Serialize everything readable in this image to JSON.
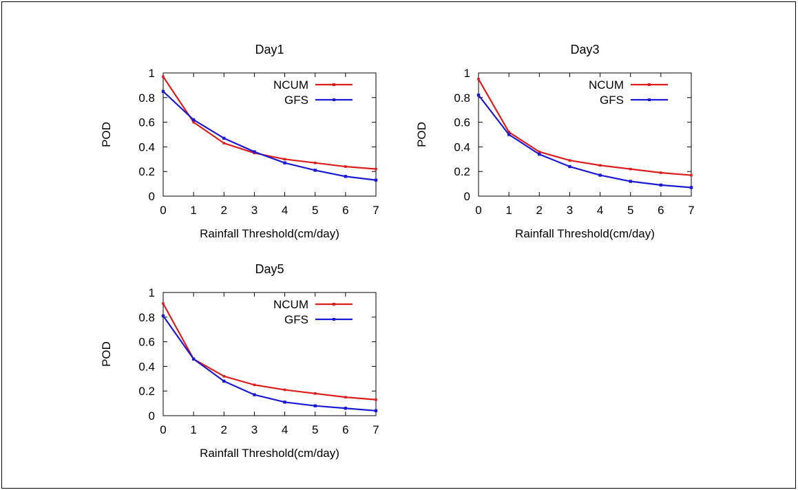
{
  "colors": {
    "NCUM": "#dd1c1c",
    "GFS": "#1a1ad4"
  },
  "chart_data": [
    {
      "type": "line",
      "title": "Day1",
      "xlabel": "Rainfall Threshold(cm/day)",
      "ylabel": "POD",
      "xlim": [
        0,
        7
      ],
      "ylim": [
        0,
        1
      ],
      "xticks": [
        "0",
        "1",
        "2",
        "3",
        "4",
        "5",
        "6",
        "7"
      ],
      "yticks": [
        "0",
        "0.2",
        "0.4",
        "0.6",
        "0.8",
        "1"
      ],
      "legend": "top-right",
      "x": [
        0,
        1,
        2,
        3,
        4,
        5,
        6,
        7
      ],
      "series": [
        {
          "name": "NCUM",
          "values": [
            0.97,
            0.6,
            0.43,
            0.35,
            0.3,
            0.27,
            0.24,
            0.22
          ]
        },
        {
          "name": "GFS",
          "values": [
            0.85,
            0.62,
            0.47,
            0.36,
            0.27,
            0.21,
            0.16,
            0.13
          ]
        }
      ]
    },
    {
      "type": "line",
      "title": "Day3",
      "xlabel": "Rainfall Threshold(cm/day)",
      "ylabel": "POD",
      "xlim": [
        0,
        7
      ],
      "ylim": [
        0,
        1
      ],
      "xticks": [
        "0",
        "1",
        "2",
        "3",
        "4",
        "5",
        "6",
        "7"
      ],
      "yticks": [
        "0",
        "0.2",
        "0.4",
        "0.6",
        "0.8",
        "1"
      ],
      "legend": "top-right",
      "x": [
        0,
        1,
        2,
        3,
        4,
        5,
        6,
        7
      ],
      "series": [
        {
          "name": "NCUM",
          "values": [
            0.95,
            0.52,
            0.36,
            0.29,
            0.25,
            0.22,
            0.19,
            0.17
          ]
        },
        {
          "name": "GFS",
          "values": [
            0.82,
            0.5,
            0.34,
            0.24,
            0.17,
            0.12,
            0.09,
            0.07
          ]
        }
      ]
    },
    {
      "type": "line",
      "title": "Day5",
      "xlabel": "Rainfall Threshold(cm/day)",
      "ylabel": "POD",
      "xlim": [
        0,
        7
      ],
      "ylim": [
        0,
        1
      ],
      "xticks": [
        "0",
        "1",
        "2",
        "3",
        "4",
        "5",
        "6",
        "7"
      ],
      "yticks": [
        "0",
        "0.2",
        "0.4",
        "0.6",
        "0.8",
        "1"
      ],
      "legend": "top-right",
      "x": [
        0,
        1,
        2,
        3,
        4,
        5,
        6,
        7
      ],
      "series": [
        {
          "name": "NCUM",
          "values": [
            0.91,
            0.46,
            0.32,
            0.25,
            0.21,
            0.18,
            0.15,
            0.13
          ]
        },
        {
          "name": "GFS",
          "values": [
            0.81,
            0.46,
            0.28,
            0.17,
            0.11,
            0.08,
            0.06,
            0.04
          ]
        }
      ]
    }
  ]
}
